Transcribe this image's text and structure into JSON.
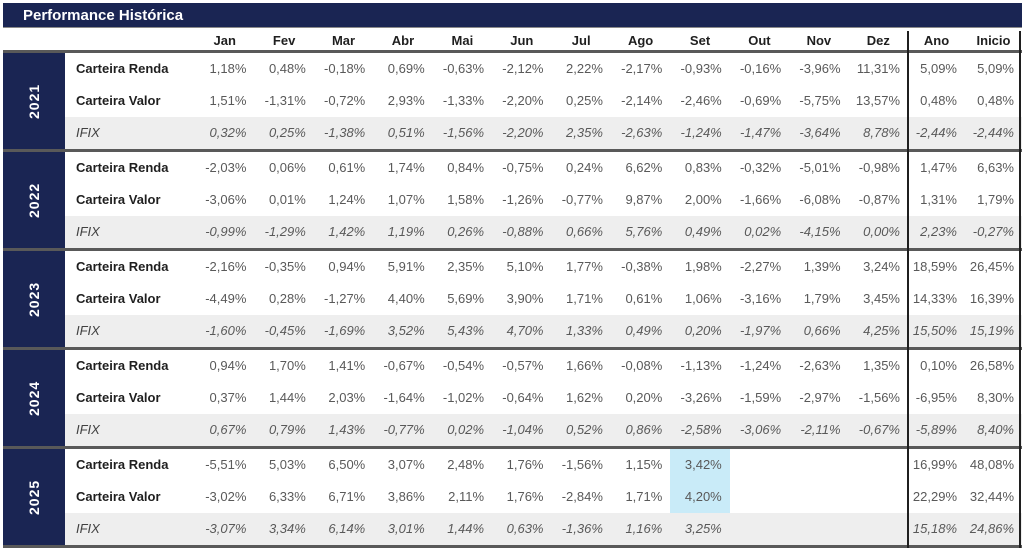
{
  "title": "Performance Histórica",
  "colors": {
    "navy": "#1a2553",
    "highlight_blue": "#c9ebf8",
    "ifix_row_bg": "#eeeeee",
    "separator_gray": "#595959",
    "divider_dark": "#1f1f1f"
  },
  "highlight": {
    "year": "2025",
    "column": "Set",
    "column_index": 8,
    "row_indexes": [
      0,
      1
    ],
    "rows": [
      "Carteira Renda",
      "Carteira Valor"
    ]
  },
  "chart_data": {
    "type": "table",
    "title": "Performance Histórica",
    "columns": [
      "Jan",
      "Fev",
      "Mar",
      "Abr",
      "Mai",
      "Jun",
      "Jul",
      "Ago",
      "Set",
      "Out",
      "Nov",
      "Dez",
      "Ano",
      "Inicio"
    ],
    "groups": [
      {
        "year": "2021",
        "rows": [
          {
            "label": "Carteira Renda",
            "values": [
              "1,18%",
              "0,48%",
              "-0,18%",
              "0,69%",
              "-0,63%",
              "-2,12%",
              "2,22%",
              "-2,17%",
              "-0,93%",
              "-0,16%",
              "-3,96%",
              "11,31%",
              "5,09%",
              "5,09%"
            ]
          },
          {
            "label": "Carteira Valor",
            "values": [
              "1,51%",
              "-1,31%",
              "-0,72%",
              "2,93%",
              "-1,33%",
              "-2,20%",
              "0,25%",
              "-2,14%",
              "-2,46%",
              "-0,69%",
              "-5,75%",
              "13,57%",
              "0,48%",
              "0,48%"
            ]
          },
          {
            "label": "IFIX",
            "values": [
              "0,32%",
              "0,25%",
              "-1,38%",
              "0,51%",
              "-1,56%",
              "-2,20%",
              "2,35%",
              "-2,63%",
              "-1,24%",
              "-1,47%",
              "-3,64%",
              "8,78%",
              "-2,44%",
              "-2,44%"
            ]
          }
        ]
      },
      {
        "year": "2022",
        "rows": [
          {
            "label": "Carteira Renda",
            "values": [
              "-2,03%",
              "0,06%",
              "0,61%",
              "1,74%",
              "0,84%",
              "-0,75%",
              "0,24%",
              "6,62%",
              "0,83%",
              "-0,32%",
              "-5,01%",
              "-0,98%",
              "1,47%",
              "6,63%"
            ]
          },
          {
            "label": "Carteira Valor",
            "values": [
              "-3,06%",
              "0,01%",
              "1,24%",
              "1,07%",
              "1,58%",
              "-1,26%",
              "-0,77%",
              "9,87%",
              "2,00%",
              "-1,66%",
              "-6,08%",
              "-0,87%",
              "1,31%",
              "1,79%"
            ]
          },
          {
            "label": "IFIX",
            "values": [
              "-0,99%",
              "-1,29%",
              "1,42%",
              "1,19%",
              "0,26%",
              "-0,88%",
              "0,66%",
              "5,76%",
              "0,49%",
              "0,02%",
              "-4,15%",
              "0,00%",
              "2,23%",
              "-0,27%"
            ]
          }
        ]
      },
      {
        "year": "2023",
        "rows": [
          {
            "label": "Carteira Renda",
            "values": [
              "-2,16%",
              "-0,35%",
              "0,94%",
              "5,91%",
              "2,35%",
              "5,10%",
              "1,77%",
              "-0,38%",
              "1,98%",
              "-2,27%",
              "1,39%",
              "3,24%",
              "18,59%",
              "26,45%"
            ]
          },
          {
            "label": "Carteira Valor",
            "values": [
              "-4,49%",
              "0,28%",
              "-1,27%",
              "4,40%",
              "5,69%",
              "3,90%",
              "1,71%",
              "0,61%",
              "1,06%",
              "-3,16%",
              "1,79%",
              "3,45%",
              "14,33%",
              "16,39%"
            ]
          },
          {
            "label": "IFIX",
            "values": [
              "-1,60%",
              "-0,45%",
              "-1,69%",
              "3,52%",
              "5,43%",
              "4,70%",
              "1,33%",
              "0,49%",
              "0,20%",
              "-1,97%",
              "0,66%",
              "4,25%",
              "15,50%",
              "15,19%"
            ]
          }
        ]
      },
      {
        "year": "2024",
        "rows": [
          {
            "label": "Carteira Renda",
            "values": [
              "0,94%",
              "1,70%",
              "1,41%",
              "-0,67%",
              "-0,54%",
              "-0,57%",
              "1,66%",
              "-0,08%",
              "-1,13%",
              "-1,24%",
              "-2,63%",
              "1,35%",
              "0,10%",
              "26,58%"
            ]
          },
          {
            "label": "Carteira Valor",
            "values": [
              "0,37%",
              "1,44%",
              "2,03%",
              "-1,64%",
              "-1,02%",
              "-0,64%",
              "1,62%",
              "0,20%",
              "-3,26%",
              "-1,59%",
              "-2,97%",
              "-1,56%",
              "-6,95%",
              "8,30%"
            ]
          },
          {
            "label": "IFIX",
            "values": [
              "0,67%",
              "0,79%",
              "1,43%",
              "-0,77%",
              "0,02%",
              "-1,04%",
              "0,52%",
              "0,86%",
              "-2,58%",
              "-3,06%",
              "-2,11%",
              "-0,67%",
              "-5,89%",
              "8,40%"
            ]
          }
        ]
      },
      {
        "year": "2025",
        "rows": [
          {
            "label": "Carteira Renda",
            "values": [
              "-5,51%",
              "5,03%",
              "6,50%",
              "3,07%",
              "2,48%",
              "1,76%",
              "-1,56%",
              "1,15%",
              "3,42%",
              "",
              "",
              "",
              "16,99%",
              "48,08%"
            ]
          },
          {
            "label": "Carteira Valor",
            "values": [
              "-3,02%",
              "6,33%",
              "6,71%",
              "3,86%",
              "2,11%",
              "1,76%",
              "-2,84%",
              "1,71%",
              "4,20%",
              "",
              "",
              "",
              "22,29%",
              "32,44%"
            ]
          },
          {
            "label": "IFIX",
            "values": [
              "-3,07%",
              "3,34%",
              "6,14%",
              "3,01%",
              "1,44%",
              "0,63%",
              "-1,36%",
              "1,16%",
              "3,25%",
              "",
              "",
              "",
              "15,18%",
              "24,86%"
            ]
          }
        ]
      }
    ]
  }
}
